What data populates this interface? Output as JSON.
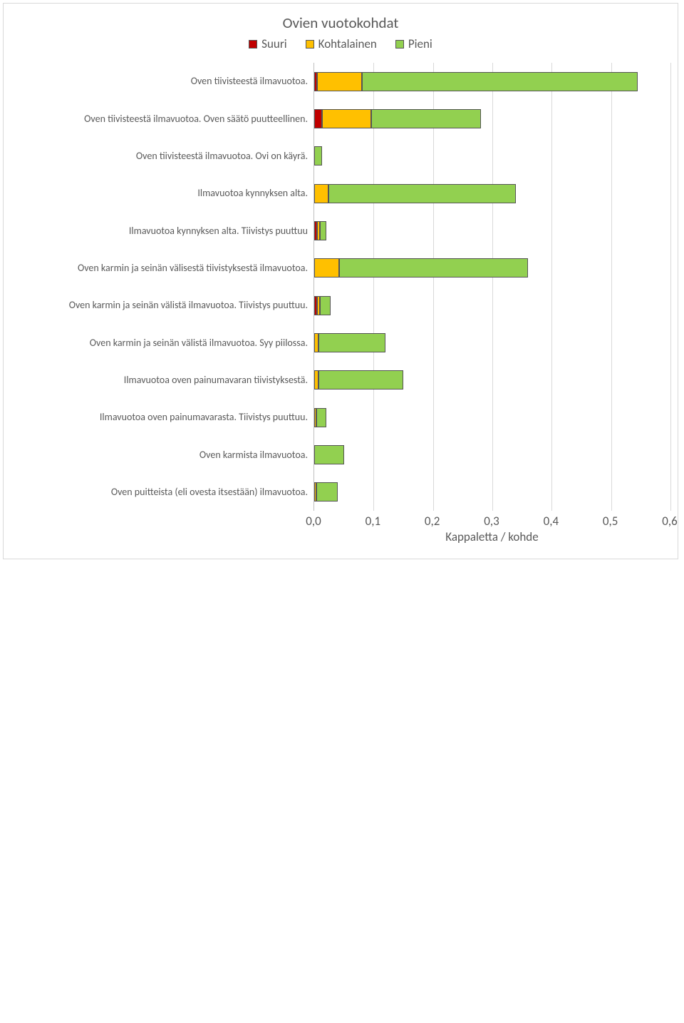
{
  "chart": {
    "type": "stacked-horizontal-bar",
    "title": "Ovien vuotokohdat",
    "title_fontsize": 21,
    "legend_fontsize": 17,
    "label_fontsize": 14,
    "tick_fontsize": 17,
    "xlabel": "Kappaletta / kohde",
    "xlabel_fontsize": 17,
    "xlim": [
      0.0,
      0.6
    ],
    "xtick_step": 0.1,
    "xticks": [
      "0,0",
      "0,1",
      "0,2",
      "0,3",
      "0,4",
      "0,5",
      "0,6"
    ],
    "colors": {
      "suuri": "#c00000",
      "kohtalainen": "#ffc000",
      "pieni": "#92d050",
      "border": "#555555",
      "grid": "#d9d9d9",
      "axis": "#bfbfbf",
      "text": "#595959",
      "background": "#ffffff"
    },
    "series_labels": {
      "suuri": "Suuri",
      "kohtalainen": "Kohtalainen",
      "pieni": "Pieni"
    },
    "categories": [
      {
        "label": "Oven tiivisteestä ilmavuotoa.",
        "suuri": 0.005,
        "kohtalainen": 0.075,
        "pieni": 0.465
      },
      {
        "label": "Oven tiivisteestä ilmavuotoa. Oven säätö puutteellinen.",
        "suuri": 0.013,
        "kohtalainen": 0.083,
        "pieni": 0.185
      },
      {
        "label": "Oven tiivisteestä ilmavuotoa. Ovi on käyrä.",
        "suuri": 0.0,
        "kohtalainen": 0.0,
        "pieni": 0.013
      },
      {
        "label": "Ilmavuotoa kynnyksen alta.",
        "suuri": 0.0,
        "kohtalainen": 0.024,
        "pieni": 0.316
      },
      {
        "label": "Ilmavuotoa kynnyksen alta. Tiivistys puuttuu",
        "suuri": 0.005,
        "kohtalainen": 0.005,
        "pieni": 0.01
      },
      {
        "label": "Oven karmin ja seinän välisestä tiivistyksestä ilmavuotoa.",
        "suuri": 0.0,
        "kohtalainen": 0.042,
        "pieni": 0.318
      },
      {
        "label": "Oven karmin ja seinän välistä ilmavuotoa. Tiivistys puuttuu.",
        "suuri": 0.005,
        "kohtalainen": 0.005,
        "pieni": 0.018
      },
      {
        "label": "Oven karmin ja seinän välistä ilmavuotoa. Syy piilossa.",
        "suuri": 0.0,
        "kohtalainen": 0.007,
        "pieni": 0.113
      },
      {
        "label": "Ilmavuotoa oven painumavaran tiivistyksestä.",
        "suuri": 0.0,
        "kohtalainen": 0.007,
        "pieni": 0.143
      },
      {
        "label": "Ilmavuotoa oven painumavarasta. Tiivistys puuttuu.",
        "suuri": 0.0,
        "kohtalainen": 0.003,
        "pieni": 0.017
      },
      {
        "label": "Oven karmista ilmavuotoa.",
        "suuri": 0.0,
        "kohtalainen": 0.0,
        "pieni": 0.05
      },
      {
        "label": "Oven puitteista (eli ovesta itsestään) ilmavuotoa.",
        "suuri": 0.0,
        "kohtalainen": 0.003,
        "pieni": 0.037
      }
    ]
  }
}
